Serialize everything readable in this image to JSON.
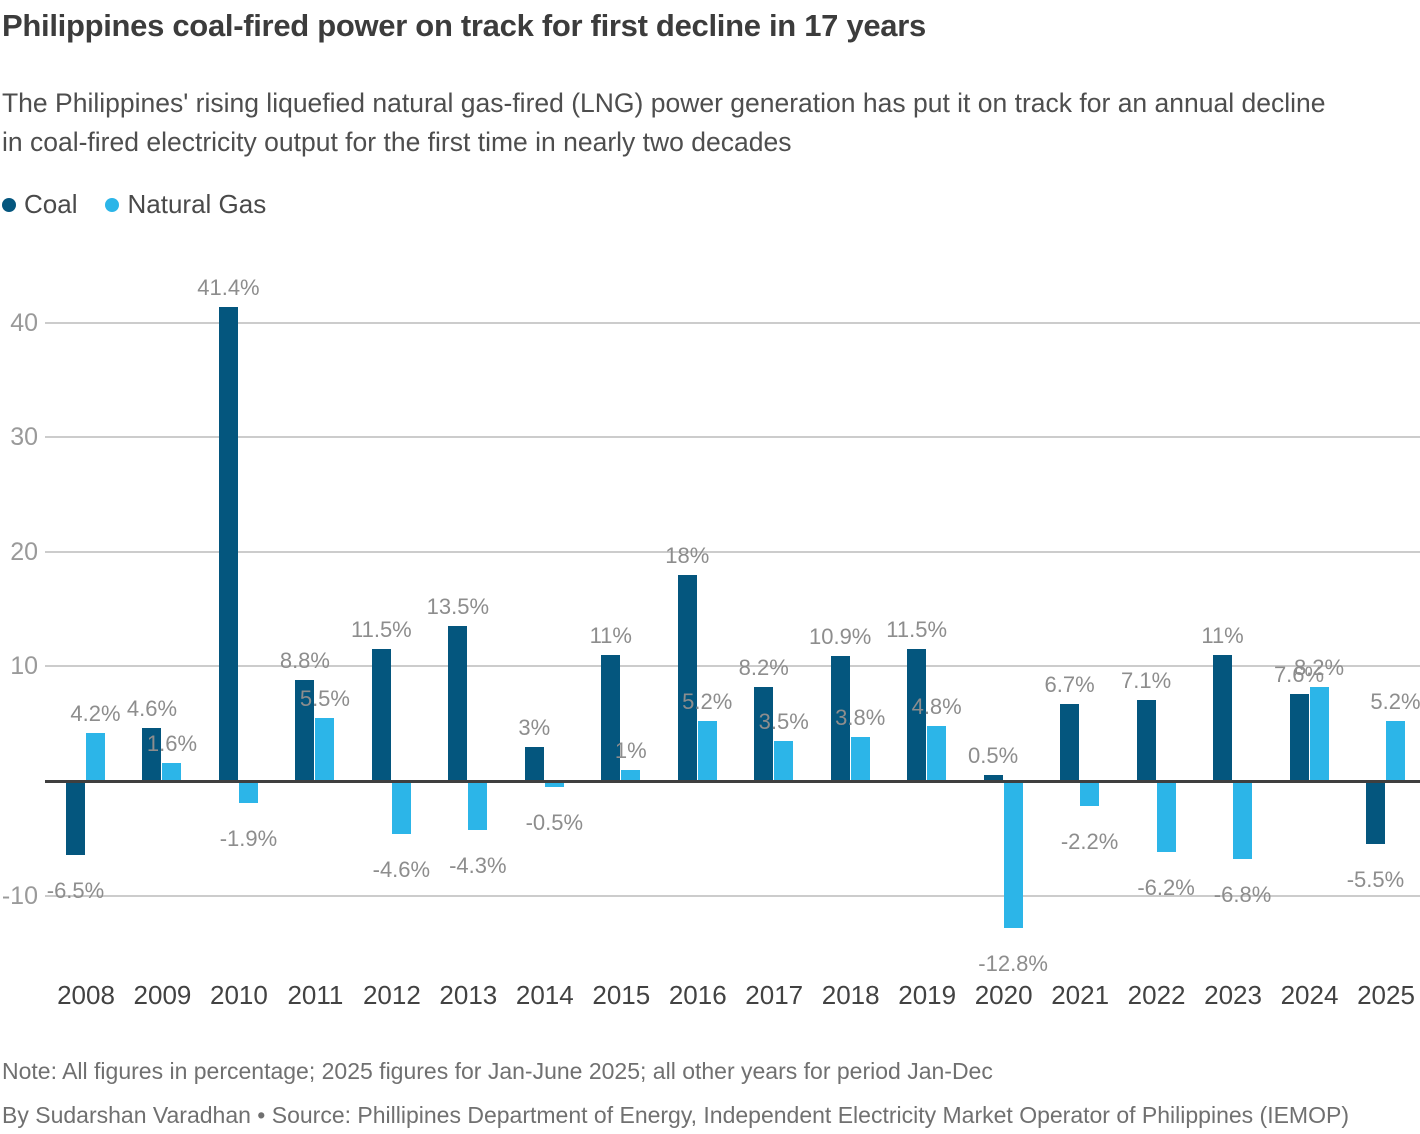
{
  "header": {
    "title": "Philippines coal-fired power on track for first decline in 17 years",
    "subtitle": "The Philippines' rising liquefied natural gas-fired (LNG) power generation has put it on track for an annual decline in coal-fired electricity output for the first time in nearly two decades"
  },
  "legend": {
    "items": [
      {
        "label": "Coal",
        "color": "#04567e"
      },
      {
        "label": "Natural Gas",
        "color": "#2cb5e8"
      }
    ]
  },
  "chart_data": {
    "type": "bar",
    "title": "Philippines coal-fired power on track for first decline in 17 years",
    "categories": [
      "2008",
      "2009",
      "2010",
      "2011",
      "2012",
      "2013",
      "2014",
      "2015",
      "2016",
      "2017",
      "2018",
      "2019",
      "2020",
      "2021",
      "2022",
      "2023",
      "2024",
      "2025"
    ],
    "series": [
      {
        "name": "Coal",
        "color": "#04567e",
        "values": [
          -6.5,
          4.6,
          41.4,
          8.8,
          11.5,
          13.5,
          3,
          11,
          18,
          8.2,
          10.9,
          11.5,
          0.5,
          6.7,
          7.1,
          11,
          7.6,
          -5.5
        ]
      },
      {
        "name": "Natural Gas",
        "color": "#2cb5e8",
        "values": [
          4.2,
          1.6,
          -1.9,
          5.5,
          -4.6,
          -4.3,
          -0.5,
          1,
          5.2,
          3.5,
          3.8,
          4.8,
          -12.8,
          -2.2,
          -6.2,
          -6.8,
          8.2,
          5.2
        ]
      }
    ],
    "xlabel": "",
    "ylabel": "",
    "ylim": [
      -15,
      45
    ],
    "yticks": [
      40,
      30,
      20,
      10,
      -10
    ],
    "grid": true,
    "legend_position": "top-left",
    "value_labels": true,
    "value_label_suffix": "%"
  },
  "footer": {
    "note": "Note: All figures in percentage; 2025 figures for Jan-June 2025; all other years for period Jan-Dec",
    "byline": "By Sudarshan Varadhan • Source: Phillipines Department of Energy, Independent Electricity Market Operator of Philippines (IEMOP)"
  }
}
